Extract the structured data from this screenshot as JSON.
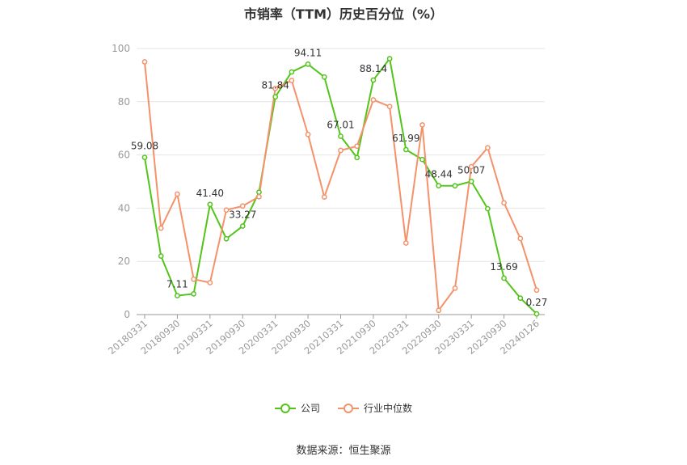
{
  "title": "市销率（TTM）历史百分位（%）",
  "source": "数据来源：恒生聚源",
  "colors": {
    "company": "#52c41a",
    "industry": "#f4926a"
  },
  "chart_data": {
    "type": "line",
    "title": "市销率（TTM）历史百分位（%）",
    "ylim": [
      0,
      100
    ],
    "yticks": [
      0,
      20,
      40,
      60,
      80,
      100
    ],
    "grid": true,
    "legend_position": "bottom-center",
    "x": [
      "20180331",
      "20180630",
      "20180930",
      "20181231",
      "20190331",
      "20190630",
      "20190930",
      "20191231",
      "20200331",
      "20200630",
      "20200930",
      "20201231",
      "20210331",
      "20210630",
      "20210930",
      "20211231",
      "20220331",
      "20220630",
      "20220930",
      "20221231",
      "20230331",
      "20230630",
      "20230930",
      "20231231",
      "20240126"
    ],
    "x_tick_labels": [
      "20180331",
      "20180930",
      "20190331",
      "20190930",
      "20200331",
      "20200930",
      "20210331",
      "20210930",
      "20220331",
      "20220930",
      "20230331",
      "20230930",
      "20240126"
    ],
    "series": [
      {
        "name": "公司",
        "values": [
          59.08,
          22.0,
          7.11,
          7.8,
          41.4,
          28.5,
          33.27,
          46.0,
          81.84,
          91.2,
          94.11,
          89.3,
          67.01,
          59.0,
          88.14,
          96.2,
          61.99,
          58.3,
          48.44,
          48.4,
          50.07,
          39.8,
          13.69,
          6.2,
          0.27
        ]
      },
      {
        "name": "行业中位数",
        "values": [
          95.0,
          32.5,
          45.3,
          13.3,
          12.0,
          39.3,
          40.8,
          44.3,
          85.0,
          88.0,
          67.7,
          44.2,
          61.7,
          63.3,
          80.7,
          78.2,
          26.9,
          71.3,
          1.6,
          9.9,
          55.6,
          62.7,
          42.0,
          28.6,
          9.2
        ]
      }
    ],
    "data_labels": [
      {
        "series": 0,
        "index": 0,
        "text": "59.08"
      },
      {
        "series": 0,
        "index": 2,
        "text": "7.11"
      },
      {
        "series": 0,
        "index": 4,
        "text": "41.40"
      },
      {
        "series": 0,
        "index": 6,
        "text": "33.27"
      },
      {
        "series": 0,
        "index": 8,
        "text": "81.84"
      },
      {
        "series": 0,
        "index": 10,
        "text": "94.11"
      },
      {
        "series": 0,
        "index": 12,
        "text": "67.01"
      },
      {
        "series": 0,
        "index": 14,
        "text": "88.14"
      },
      {
        "series": 0,
        "index": 16,
        "text": "61.99"
      },
      {
        "series": 0,
        "index": 18,
        "text": "48.44"
      },
      {
        "series": 0,
        "index": 20,
        "text": "50.07"
      },
      {
        "series": 0,
        "index": 22,
        "text": "13.69"
      },
      {
        "series": 0,
        "index": 24,
        "text": "0.27"
      }
    ]
  }
}
